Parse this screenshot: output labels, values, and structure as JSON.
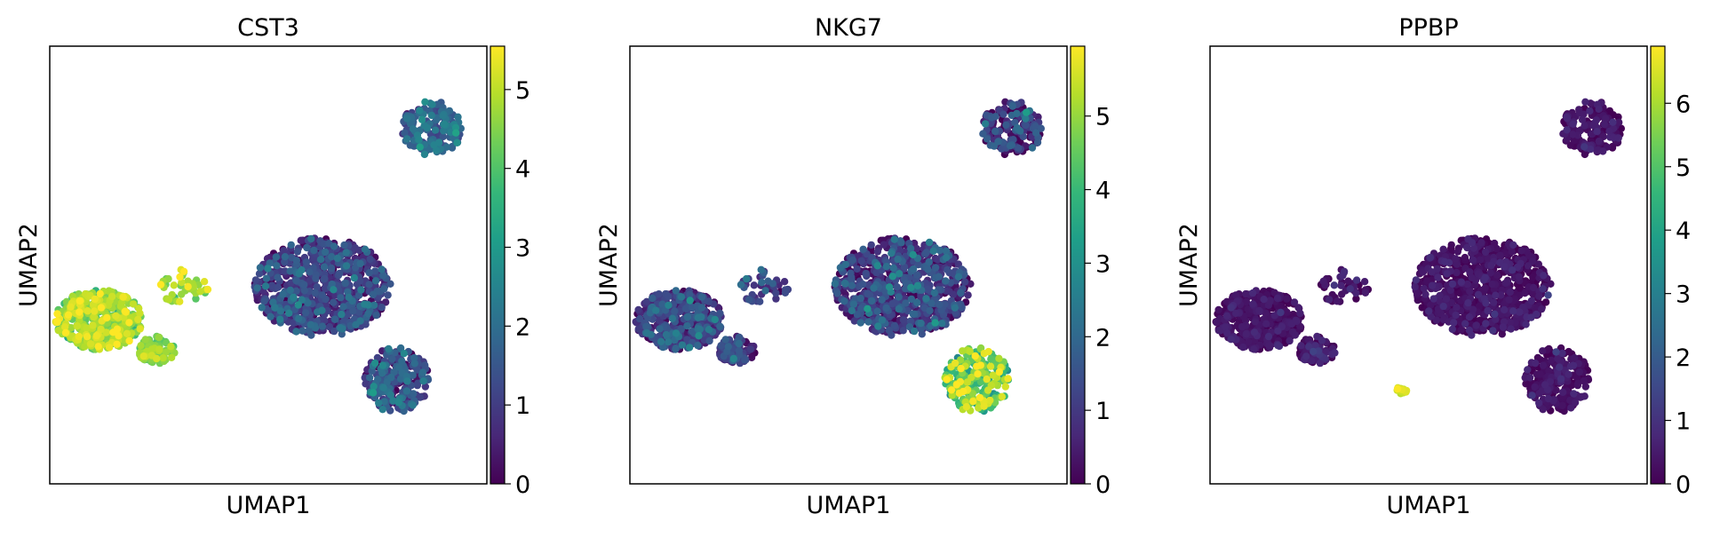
{
  "colormap": [
    "#440154",
    "#482878",
    "#3e4989",
    "#31688e",
    "#26828e",
    "#1f9e89",
    "#35b779",
    "#6ece58",
    "#b5de2b",
    "#fde725"
  ],
  "frame_color": "#000000",
  "chart_data": [
    {
      "type": "scatter",
      "title": "CST3",
      "xlabel": "UMAP1",
      "ylabel": "UMAP2",
      "grid": false,
      "legend": "colorbar-right",
      "xticks": [],
      "yticks": [],
      "colorbar": {
        "min": 0,
        "max": 5.55,
        "ticks": [
          0,
          1,
          2,
          3,
          4,
          5
        ]
      },
      "groups": [
        {
          "name": "top-right",
          "cx": 14.0,
          "cy": 13.0,
          "rx": 1.1,
          "ry": 1.0,
          "n": 170,
          "mean": 1.7,
          "spread": 0.6
        },
        {
          "name": "left-lobe",
          "cx": 1.8,
          "cy": 6.0,
          "rx": 1.6,
          "ry": 1.1,
          "n": 420,
          "mean": 4.6,
          "spread": 0.5
        },
        {
          "name": "left-tail",
          "cx": 3.9,
          "cy": 4.9,
          "rx": 0.7,
          "ry": 0.5,
          "n": 90,
          "mean": 4.5,
          "spread": 0.4
        },
        {
          "name": "left-arm",
          "cx": 4.9,
          "cy": 7.2,
          "rx": 0.9,
          "ry": 0.7,
          "n": 40,
          "mean": 4.8,
          "spread": 0.4
        },
        {
          "name": "big-cluster",
          "cx": 10.0,
          "cy": 7.2,
          "rx": 2.5,
          "ry": 1.8,
          "n": 760,
          "mean": 0.9,
          "spread": 0.7
        },
        {
          "name": "lower-tail",
          "cx": 12.7,
          "cy": 3.8,
          "rx": 1.2,
          "ry": 1.2,
          "n": 240,
          "mean": 1.2,
          "spread": 0.7
        }
      ]
    },
    {
      "type": "scatter",
      "title": "NKG7",
      "xlabel": "UMAP1",
      "ylabel": "UMAP2",
      "grid": false,
      "legend": "colorbar-right",
      "xticks": [],
      "yticks": [],
      "colorbar": {
        "min": 0,
        "max": 5.95,
        "ticks": [
          0,
          1,
          2,
          3,
          4,
          5
        ]
      },
      "groups": [
        {
          "name": "top-right",
          "cx": 14.0,
          "cy": 13.0,
          "rx": 1.1,
          "ry": 1.0,
          "n": 170,
          "mean": 0.8,
          "spread": 0.8
        },
        {
          "name": "left-lobe",
          "cx": 1.8,
          "cy": 6.0,
          "rx": 1.6,
          "ry": 1.1,
          "n": 420,
          "mean": 0.9,
          "spread": 0.7
        },
        {
          "name": "left-tail",
          "cx": 3.9,
          "cy": 4.9,
          "rx": 0.7,
          "ry": 0.5,
          "n": 90,
          "mean": 0.9,
          "spread": 0.6
        },
        {
          "name": "left-arm",
          "cx": 4.9,
          "cy": 7.2,
          "rx": 0.9,
          "ry": 0.7,
          "n": 40,
          "mean": 1.1,
          "spread": 0.6
        },
        {
          "name": "big-cluster",
          "cx": 10.0,
          "cy": 7.2,
          "rx": 2.5,
          "ry": 1.8,
          "n": 760,
          "mean": 0.9,
          "spread": 0.8
        },
        {
          "name": "lower-tail",
          "cx": 12.7,
          "cy": 3.8,
          "rx": 1.2,
          "ry": 1.2,
          "n": 240,
          "mean": 4.4,
          "spread": 0.9
        }
      ]
    },
    {
      "type": "scatter",
      "title": "PPBP",
      "xlabel": "UMAP1",
      "ylabel": "UMAP2",
      "grid": false,
      "legend": "colorbar-right",
      "xticks": [],
      "yticks": [],
      "colorbar": {
        "min": 0,
        "max": 6.9,
        "ticks": [
          0,
          1,
          2,
          3,
          4,
          5,
          6
        ]
      },
      "groups": [
        {
          "name": "top-right",
          "cx": 14.0,
          "cy": 13.0,
          "rx": 1.1,
          "ry": 1.0,
          "n": 170,
          "mean": 0.2,
          "spread": 0.3
        },
        {
          "name": "left-lobe",
          "cx": 1.8,
          "cy": 6.0,
          "rx": 1.6,
          "ry": 1.1,
          "n": 420,
          "mean": 0.2,
          "spread": 0.3
        },
        {
          "name": "left-tail",
          "cx": 3.9,
          "cy": 4.9,
          "rx": 0.7,
          "ry": 0.5,
          "n": 90,
          "mean": 0.3,
          "spread": 0.4
        },
        {
          "name": "left-arm",
          "cx": 4.9,
          "cy": 7.2,
          "rx": 0.9,
          "ry": 0.7,
          "n": 40,
          "mean": 0.3,
          "spread": 0.4
        },
        {
          "name": "big-cluster",
          "cx": 10.0,
          "cy": 7.2,
          "rx": 2.5,
          "ry": 1.8,
          "n": 760,
          "mean": 0.2,
          "spread": 0.3
        },
        {
          "name": "lower-tail",
          "cx": 12.7,
          "cy": 3.8,
          "rx": 1.2,
          "ry": 1.2,
          "n": 240,
          "mean": 0.2,
          "spread": 0.3
        },
        {
          "name": "platelet-spot",
          "cx": 7.0,
          "cy": 3.4,
          "rx": 0.2,
          "ry": 0.2,
          "n": 12,
          "mean": 6.4,
          "spread": 0.3
        }
      ]
    }
  ]
}
